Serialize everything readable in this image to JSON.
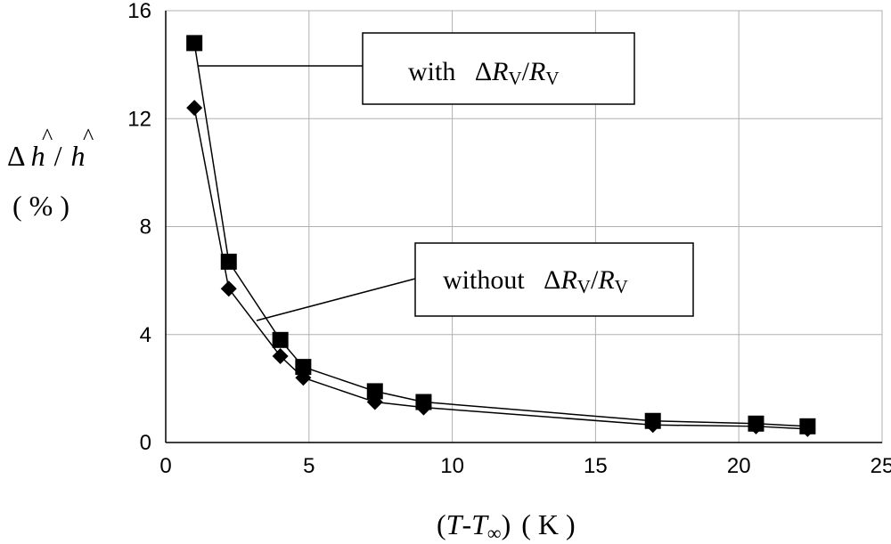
{
  "chart_data": {
    "type": "line",
    "x_label": {
      "open": "(",
      "T": "T",
      "dash": "-",
      "T_sub": "∞",
      "close": ")",
      "unit": "( K )"
    },
    "y_label": {
      "delta": "Δ",
      "h1": "h",
      "slash": "/",
      "h2": "h",
      "hat": "^",
      "unit": "( % )"
    },
    "xlim": [
      0,
      25
    ],
    "ylim": [
      0,
      16
    ],
    "x_ticks": [
      "0",
      "5",
      "10",
      "15",
      "20",
      "25"
    ],
    "y_ticks": [
      "0",
      "4",
      "8",
      "12",
      "16"
    ],
    "grid": true,
    "series": [
      {
        "marker": "square",
        "x": [
          1.0,
          2.2,
          4.0,
          4.8,
          7.3,
          9.0,
          17.0,
          20.6,
          22.4
        ],
        "y": [
          14.8,
          6.7,
          3.8,
          2.8,
          1.9,
          1.5,
          0.8,
          0.7,
          0.6
        ]
      },
      {
        "marker": "diamond",
        "x": [
          1.0,
          2.2,
          4.0,
          4.8,
          7.3,
          9.0,
          17.0,
          20.6,
          22.4
        ],
        "y": [
          12.4,
          5.7,
          3.2,
          2.4,
          1.5,
          1.3,
          0.65,
          0.6,
          0.5
        ]
      }
    ],
    "annotations": [
      {
        "prefix": "with",
        "delta": "Δ",
        "R1": "R",
        "sub1": "V",
        "slash": "/",
        "R2": "R",
        "sub2": "V",
        "series_index": 0
      },
      {
        "prefix": "without",
        "delta": "Δ",
        "R1": "R",
        "sub1": "V",
        "slash": "/",
        "R2": "R",
        "sub2": "V",
        "series_index": 1
      }
    ]
  }
}
